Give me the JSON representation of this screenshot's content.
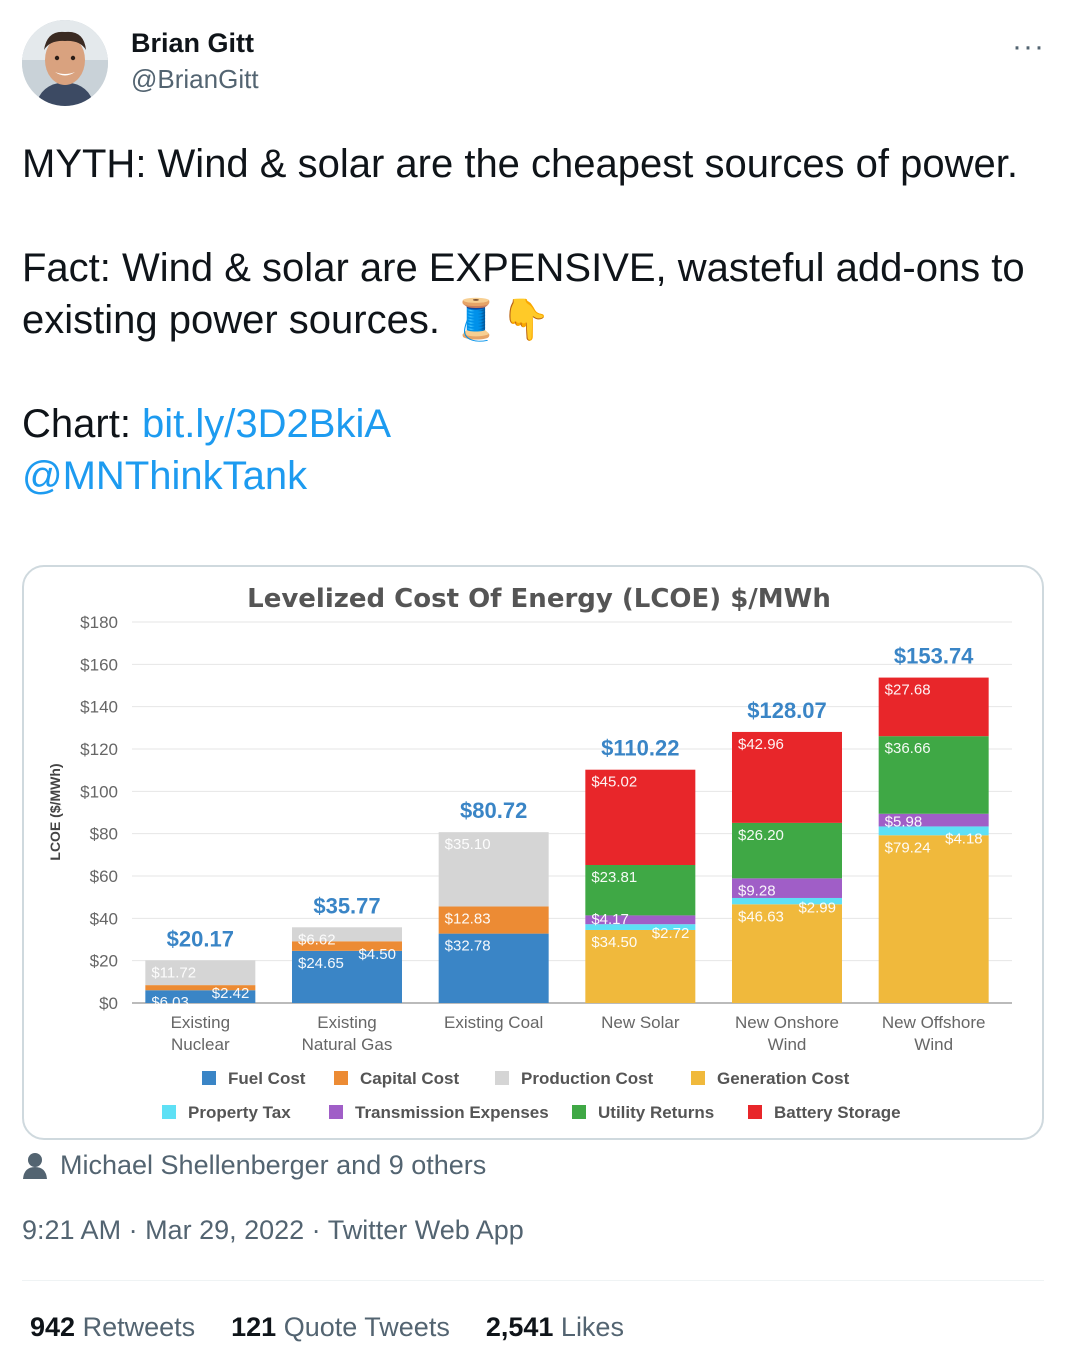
{
  "tweet": {
    "author_name": "Brian Gitt",
    "author_handle": "@BrianGitt",
    "more_label": "···",
    "line1": "MYTH: Wind & solar are the cheapest sources of power.",
    "line2": "Fact: Wind & solar are EXPENSIVE, wasteful add-ons to existing power sources. 🧵👇",
    "chart_prefix": "Chart: ",
    "chart_link": "bit.ly/3D2BkiA",
    "mention": "@MNThinkTank",
    "liked_by": "Michael Shellenberger and 9 others",
    "time": "9:21 AM",
    "date": "Mar 29, 2022",
    "source": "Twitter Web App",
    "sep": " · "
  },
  "stats": {
    "retweets_count": "942",
    "retweets_label": "Retweets",
    "quotes_count": "121",
    "quotes_label": "Quote Tweets",
    "likes_count": "2,541",
    "likes_label": "Likes"
  },
  "chart_data": {
    "type": "bar",
    "stacked": true,
    "title": "Levelized Cost Of Energy (LCOE) $/MWh",
    "ylabel": "LCOE ($/MWh)",
    "ylim": [
      0,
      180
    ],
    "yticks": [
      "$0",
      "$20",
      "$40",
      "$60",
      "$80",
      "$100",
      "$120",
      "$140",
      "$160",
      "$180"
    ],
    "grid": true,
    "legend_position": "bottom",
    "categories": [
      [
        "Existing",
        "Nuclear"
      ],
      [
        "Existing",
        "Natural Gas"
      ],
      [
        "Existing Coal"
      ],
      [
        "New Solar"
      ],
      [
        "New Onshore",
        "Wind"
      ],
      [
        "New Offshore",
        "Wind"
      ]
    ],
    "totals": [
      "$20.17",
      "$35.77",
      "$80.72",
      "$110.22",
      "$128.07",
      "$153.74"
    ],
    "total_values": [
      20.17,
      35.77,
      80.72,
      110.22,
      128.07,
      153.74
    ],
    "series": [
      {
        "name": "Fuel Cost",
        "color": "#3a85c6",
        "values": [
          6.03,
          24.65,
          32.78,
          0,
          0,
          0
        ],
        "labels": [
          "$6.03",
          "$24.65",
          "$32.78",
          "",
          "",
          ""
        ]
      },
      {
        "name": "Capital Cost",
        "color": "#ec8b34",
        "values": [
          2.42,
          4.5,
          12.83,
          0,
          0,
          0
        ],
        "labels": [
          "$2.42",
          "$4.50",
          "$12.83",
          "",
          "",
          ""
        ]
      },
      {
        "name": "Production Cost",
        "color": "#d5d5d5",
        "values": [
          11.72,
          6.62,
          35.1,
          0,
          0,
          0
        ],
        "labels": [
          "$11.72",
          "$6.62",
          "$35.10",
          "",
          "",
          ""
        ]
      },
      {
        "name": "Generation Cost",
        "color": "#f0b93c",
        "values": [
          0,
          0,
          0,
          34.5,
          46.63,
          79.24
        ],
        "labels": [
          "",
          "",
          "",
          "$34.50",
          "$46.63",
          "$79.24"
        ]
      },
      {
        "name": "Property Tax",
        "color": "#5ee0f5",
        "values": [
          0,
          0,
          0,
          2.72,
          2.99,
          4.18
        ],
        "labels": [
          "",
          "",
          "",
          "$2.72",
          "$2.99",
          "$4.18"
        ]
      },
      {
        "name": "Transmission Expenses",
        "color": "#a05ec7",
        "values": [
          0,
          0,
          0,
          4.17,
          9.28,
          5.98
        ],
        "labels": [
          "",
          "",
          "",
          "$4.17",
          "$9.28",
          "$5.98"
        ]
      },
      {
        "name": "Utility Returns",
        "color": "#3fa845",
        "values": [
          0,
          0,
          0,
          23.81,
          26.2,
          36.66
        ],
        "labels": [
          "",
          "",
          "",
          "$23.81",
          "$26.20",
          "$36.66"
        ]
      },
      {
        "name": "Battery Storage",
        "color": "#e8262a",
        "values": [
          0,
          0,
          0,
          45.02,
          42.96,
          27.68
        ],
        "labels": [
          "",
          "",
          "",
          "$45.02",
          "$42.96",
          "$27.68"
        ]
      }
    ],
    "total_color": "#3a85c6"
  },
  "colors": {
    "link": "#1d9bf0",
    "muted": "#536471",
    "text": "#0f1419",
    "border": "#cfd9de"
  }
}
